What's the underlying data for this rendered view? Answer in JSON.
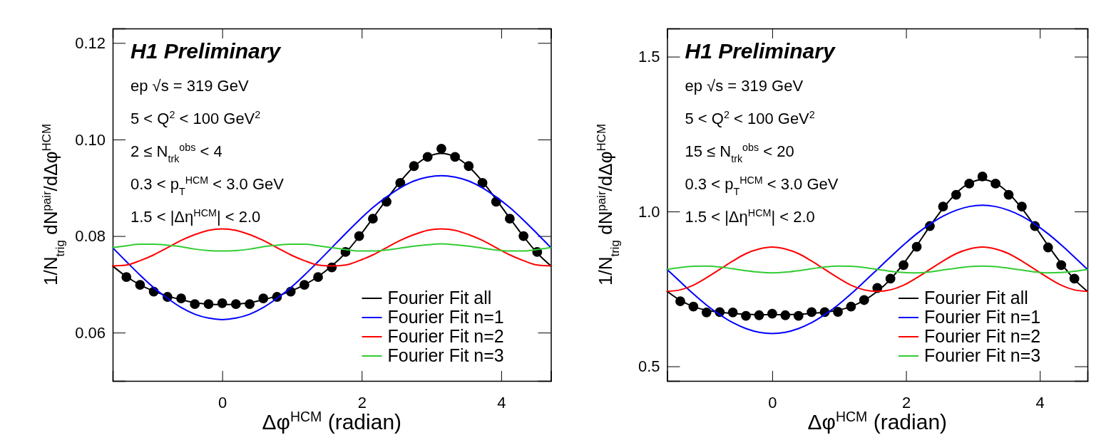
{
  "chart_data": [
    {
      "type": "line",
      "xlabel": "Δφ$^{HCM}$ (radian)",
      "ylabel": "1/N$_{trig}$ dN$^{pair}$/dΔφ$^{HCM}$",
      "annotations": [
        "H1 Preliminary",
        "ep √s = 319 GeV",
        "5 < Q$^{2}$ < 100 GeV$^{2}$",
        "2 ≤ N$_{trk}$$^{obs}$ < 4",
        "0.3 < p$_{T}$$^{HCM}$ < 3.0 GeV",
        "1.5 < |Δη$^{HCM}$| < 2.0"
      ],
      "xlim": [
        -1.571,
        4.712
      ],
      "xticks": [
        0,
        2,
        4
      ],
      "ylim": [
        0.05,
        0.123
      ],
      "yticks": [
        0.06,
        0.08,
        {
          "value": 0.1,
          "label": "0.10"
        },
        0.12
      ],
      "legend": "bottom right",
      "grid": false,
      "marker": "none",
      "line_style": "solid",
      "x": [
        -1.571,
        -1.374,
        -1.178,
        -0.982,
        -0.785,
        -0.589,
        -0.393,
        -0.196,
        0,
        0.196,
        0.393,
        0.589,
        0.785,
        0.982,
        1.178,
        1.374,
        1.571,
        1.767,
        1.963,
        2.16,
        2.356,
        2.553,
        2.749,
        2.945,
        3.142,
        3.338,
        3.534,
        3.731,
        3.927,
        4.123,
        4.32,
        4.516,
        4.712
      ],
      "series": [
        {
          "type": "scatter",
          "marker": "circle",
          "color": "#000000",
          "x": [
            -1.374,
            -1.178,
            -0.982,
            -0.785,
            -0.589,
            -0.393,
            -0.196,
            0,
            0.196,
            0.393,
            0.589,
            0.785,
            0.982,
            1.178,
            1.374,
            1.571,
            1.767,
            1.963,
            2.16,
            2.356,
            2.553,
            2.749,
            2.945,
            3.142,
            3.338,
            3.534,
            3.731,
            3.927,
            4.123,
            4.32,
            4.516
          ],
          "values": [
            0.0715,
            0.0699,
            0.0685,
            0.0674,
            0.0671,
            0.0659,
            0.0659,
            0.0661,
            0.0659,
            0.0659,
            0.0671,
            0.0674,
            0.0685,
            0.0699,
            0.0715,
            0.0735,
            0.0767,
            0.08,
            0.0836,
            0.0871,
            0.091,
            0.0945,
            0.0964,
            0.0981,
            0.0964,
            0.0945,
            0.091,
            0.0871,
            0.0836,
            0.08,
            0.0767
          ]
        },
        {
          "name": "Fourier Fit all",
          "color": "#000000",
          "values": [
            0.0738,
            0.0716,
            0.0699,
            0.0686,
            0.0676,
            0.0668,
            0.0662,
            0.0659,
            0.0658,
            0.0659,
            0.0662,
            0.0668,
            0.0676,
            0.0686,
            0.0699,
            0.0716,
            0.0738,
            0.0765,
            0.0799,
            0.0837,
            0.0876,
            0.0913,
            0.0944,
            0.0964,
            0.0971,
            0.0964,
            0.0944,
            0.0913,
            0.0876,
            0.0837,
            0.0799,
            0.0765,
            0.0738
          ]
        },
        {
          "name": "Fourier Fit n=1",
          "color": "#0000ff",
          "values": [
            0.0776,
            0.0747,
            0.0719,
            0.0693,
            0.0671,
            0.0652,
            0.0638,
            0.063,
            0.0627,
            0.063,
            0.0638,
            0.0652,
            0.0671,
            0.0693,
            0.0719,
            0.0747,
            0.0776,
            0.0805,
            0.0833,
            0.0859,
            0.0881,
            0.09,
            0.0914,
            0.0922,
            0.0925,
            0.0922,
            0.0914,
            0.09,
            0.0881,
            0.0859,
            0.0833,
            0.0805,
            0.0776
          ]
        },
        {
          "name": "Fourier Fit n=2",
          "color": "#ff0000",
          "values": [
            0.0738,
            0.074,
            0.0749,
            0.0761,
            0.0776,
            0.0791,
            0.0803,
            0.0812,
            0.0815,
            0.0812,
            0.0803,
            0.0791,
            0.0776,
            0.0761,
            0.0749,
            0.074,
            0.0738,
            0.074,
            0.0749,
            0.0761,
            0.0776,
            0.0791,
            0.0803,
            0.0812,
            0.0815,
            0.0812,
            0.0803,
            0.0791,
            0.0776,
            0.0761,
            0.0749,
            0.074,
            0.0738
          ]
        },
        {
          "name": "Fourier Fit n=3",
          "color": "#33cc33",
          "values": [
            0.0776,
            0.078,
            0.0783,
            0.0783,
            0.0781,
            0.0778,
            0.0773,
            0.077,
            0.0769,
            0.077,
            0.0773,
            0.0778,
            0.0781,
            0.0783,
            0.0783,
            0.078,
            0.0776,
            0.0772,
            0.0769,
            0.0769,
            0.0771,
            0.0775,
            0.0779,
            0.0782,
            0.0784,
            0.0782,
            0.0779,
            0.0775,
            0.0771,
            0.0769,
            0.0769,
            0.0772,
            0.0776
          ]
        }
      ]
    },
    {
      "type": "line",
      "xlabel": "Δφ$^{HCM}$ (radian)",
      "ylabel": "1/N$_{trig}$ dN$^{pair}$/dΔφ$^{HCM}$",
      "annotations": [
        "H1 Preliminary",
        "ep √s = 319 GeV",
        "5 < Q$^{2}$ < 100 GeV$^{2}$",
        "15 ≤ N$_{trk}$$^{obs}$ < 20",
        "0.3 < p$_{T}$$^{HCM}$ < 3.0 GeV",
        "1.5 < |Δη$^{HCM}$| < 2.0"
      ],
      "xlim": [
        -1.571,
        4.712
      ],
      "xticks": [
        0,
        2,
        4
      ],
      "ylim": [
        0.453,
        1.591
      ],
      "yticks": [
        0.5,
        {
          "value": 1,
          "label": "1.0"
        },
        1.5
      ],
      "legend": "bottom right",
      "grid": false,
      "marker": "none",
      "line_style": "solid",
      "x": [
        -1.571,
        -1.374,
        -1.178,
        -0.982,
        -0.785,
        -0.589,
        -0.393,
        -0.196,
        0,
        0.196,
        0.393,
        0.589,
        0.785,
        0.982,
        1.178,
        1.374,
        1.571,
        1.767,
        1.963,
        2.16,
        2.356,
        2.553,
        2.749,
        2.945,
        3.142,
        3.338,
        3.534,
        3.731,
        3.927,
        4.123,
        4.32,
        4.516,
        4.712
      ],
      "series": [
        {
          "type": "scatter",
          "marker": "circle",
          "color": "#000000",
          "x": [
            -1.374,
            -1.178,
            -0.982,
            -0.785,
            -0.589,
            -0.393,
            -0.196,
            0,
            0.196,
            0.393,
            0.589,
            0.785,
            0.982,
            1.178,
            1.374,
            1.571,
            1.767,
            1.963,
            2.16,
            2.356,
            2.553,
            2.749,
            2.945,
            3.142,
            3.338,
            3.534,
            3.731,
            3.927,
            4.123,
            4.32,
            4.516
          ],
          "values": [
            0.71,
            0.693,
            0.674,
            0.675,
            0.674,
            0.663,
            0.665,
            0.67,
            0.665,
            0.663,
            0.675,
            0.675,
            0.676,
            0.693,
            0.714,
            0.753,
            0.783,
            0.827,
            0.886,
            0.953,
            1.016,
            1.054,
            1.09,
            1.113,
            1.09,
            1.054,
            1.016,
            0.953,
            0.884,
            0.827,
            0.783
          ]
        },
        {
          "name": "Fourier Fit all",
          "color": "#000000",
          "values": [
            0.742,
            0.713,
            0.693,
            0.681,
            0.675,
            0.671,
            0.668,
            0.667,
            0.667,
            0.667,
            0.668,
            0.671,
            0.675,
            0.681,
            0.693,
            0.713,
            0.742,
            0.781,
            0.832,
            0.89,
            0.952,
            1.01,
            1.059,
            1.091,
            1.103,
            1.091,
            1.059,
            1.01,
            0.952,
            0.89,
            0.832,
            0.781,
            0.742
          ]
        },
        {
          "name": "Fourier Fit n=1",
          "color": "#0000ff",
          "values": [
            0.813,
            0.773,
            0.734,
            0.698,
            0.667,
            0.641,
            0.622,
            0.61,
            0.606,
            0.61,
            0.622,
            0.641,
            0.667,
            0.698,
            0.734,
            0.773,
            0.813,
            0.853,
            0.892,
            0.928,
            0.959,
            0.985,
            1.004,
            1.016,
            1.02,
            1.016,
            1.004,
            0.985,
            0.959,
            0.928,
            0.892,
            0.853,
            0.813
          ]
        },
        {
          "name": "Fourier Fit n=2",
          "color": "#ff0000",
          "values": [
            0.742,
            0.747,
            0.762,
            0.786,
            0.813,
            0.84,
            0.864,
            0.879,
            0.885,
            0.879,
            0.864,
            0.84,
            0.813,
            0.786,
            0.762,
            0.747,
            0.742,
            0.747,
            0.762,
            0.786,
            0.813,
            0.84,
            0.864,
            0.879,
            0.885,
            0.879,
            0.864,
            0.84,
            0.813,
            0.786,
            0.762,
            0.747,
            0.742
          ]
        },
        {
          "name": "Fourier Fit n=3",
          "color": "#33cc33",
          "values": [
            0.813,
            0.819,
            0.823,
            0.824,
            0.821,
            0.815,
            0.809,
            0.804,
            0.802,
            0.804,
            0.809,
            0.815,
            0.821,
            0.824,
            0.823,
            0.819,
            0.813,
            0.807,
            0.803,
            0.802,
            0.805,
            0.811,
            0.817,
            0.822,
            0.824,
            0.822,
            0.817,
            0.811,
            0.805,
            0.802,
            0.803,
            0.807,
            0.813
          ]
        }
      ]
    }
  ]
}
